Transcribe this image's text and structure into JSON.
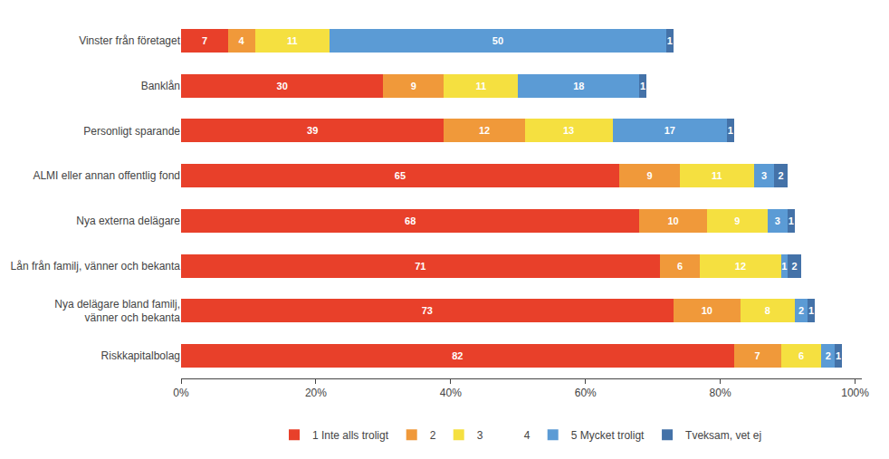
{
  "chart_data": {
    "type": "bar",
    "orientation": "horizontal",
    "stacked": true,
    "data_labels": true,
    "grid": false,
    "legend": "bottom",
    "categories": [
      "Vinster från företaget",
      "Banklån",
      "Personligt sparande",
      "ALMI eller annan offentlig fond",
      "Nya externa delägare",
      "Lån från familj, vänner och bekanta",
      "Nya delägare bland familj,\nvänner och bekanta",
      "Riskkapitalbolag"
    ],
    "series": [
      {
        "name": "1 Inte alls troligt",
        "color": "#e8402a",
        "values": [
          7,
          30,
          39,
          65,
          68,
          71,
          73,
          82
        ]
      },
      {
        "name": "2",
        "color": "#f0993a",
        "values": [
          4,
          9,
          12,
          9,
          10,
          6,
          10,
          7
        ]
      },
      {
        "name": "3",
        "color": "#f5e040",
        "values": [
          11,
          11,
          13,
          11,
          9,
          12,
          8,
          6
        ]
      },
      {
        "name": "4",
        "color": "#ffffff",
        "values": [
          0,
          0,
          0,
          0,
          0,
          0,
          0,
          0
        ]
      },
      {
        "name": "5 Mycket troligt",
        "color": "#5b9bd5",
        "values": [
          50,
          18,
          17,
          3,
          3,
          1,
          2,
          2
        ]
      },
      {
        "name": "Tveksam, vet ej",
        "color": "#4472a8",
        "values": [
          1,
          1,
          1,
          2,
          1,
          2,
          1,
          1
        ]
      }
    ],
    "xlim": [
      0,
      101
    ],
    "xticks": [
      {
        "value": 0,
        "label": "0%"
      },
      {
        "value": 20,
        "label": "20%"
      },
      {
        "value": 40,
        "label": "40%"
      },
      {
        "value": 60,
        "label": "60%"
      },
      {
        "value": 80,
        "label": "80%"
      },
      {
        "value": 100,
        "label": "100%"
      }
    ]
  }
}
